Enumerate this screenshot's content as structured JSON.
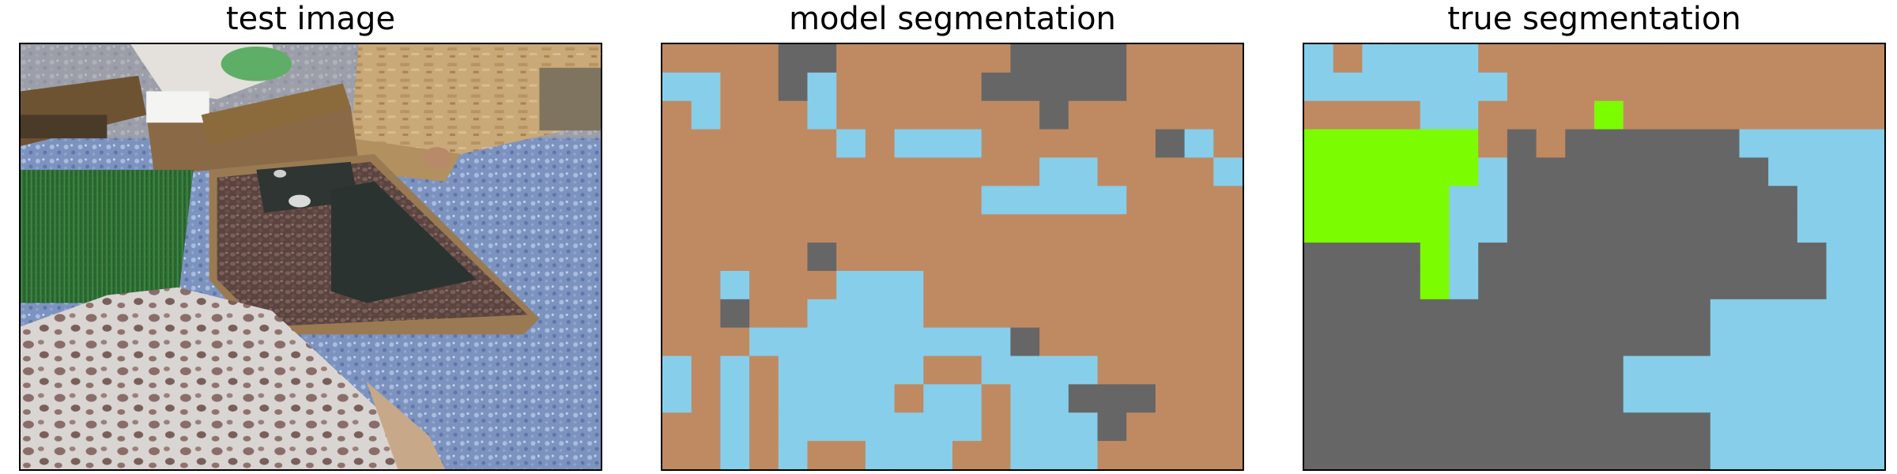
{
  "panels": [
    {
      "title": "test image"
    },
    {
      "title": "model segmentation"
    },
    {
      "title": "true segmentation"
    }
  ],
  "colors": {
    "soil": "#BF8A62",
    "water": "#87CEEB",
    "rock": "#666666",
    "grass": "#7CFC00"
  },
  "grids": {
    "model": [
      "SSSSRRSSSSSSRRRRSSSS",
      "WWSSRWSSSSSRRRRRSSSS",
      "SWSSSWSSSSSSSRSSSSSS",
      "SSSSSSWSWWWSSSSSSRWS",
      "SSSSSSSSSSSSSWWSSSSW",
      "SSSSSSSSSSSWWWWWSSSS",
      "SSSSSSSSSSSSSSSSSSSS",
      "SSSSSRSSSSSSSSSSSSSS",
      "SSWSSSWWWSSSSSSSSSSS",
      "SSRSSWWWWSSSSSSSSSSS",
      "SSSWWWWWWWWWRSSSSSSS",
      "WSWSWWWWWSSWWWWSSSSS",
      "WSWSWWWWSWWSWWRRRSSS",
      "SSWSWWWWWWWSWWWRSSSS",
      "SSWSWSSWWWSSWWWSSSSS"
    ],
    "true": [
      "WSWWWWSSSSSSSSSSSSSS",
      "WWWWWWWSSSSSSSSSSSSS",
      "SSSSWWSSSSGSSSSSSSSS",
      "GGGGGGSRSRRRRRRWWWWW",
      "GGGGGGWRRRRRRRRRWWWW",
      "GGGGGWWRRRRRRRRRRWWW",
      "GGGGGWWRRRRRRRRRRWWW",
      "RRRRGWRRRRRRRRRRRRWW",
      "RRRRGWRRRRRRRRRRRRWW",
      "RRRRRRRRRRRRRRWWWWWW",
      "RRRRRRRRRRRRRRWWWWWW",
      "RRRRRRRRRRRWWWWWWWWW",
      "RRRRRRRRRRRWWWWWWWWW",
      "RRRRRRRRRRRRRRWWWWWW",
      "RRRRRRRRRRRRRRWWWWWW"
    ]
  }
}
